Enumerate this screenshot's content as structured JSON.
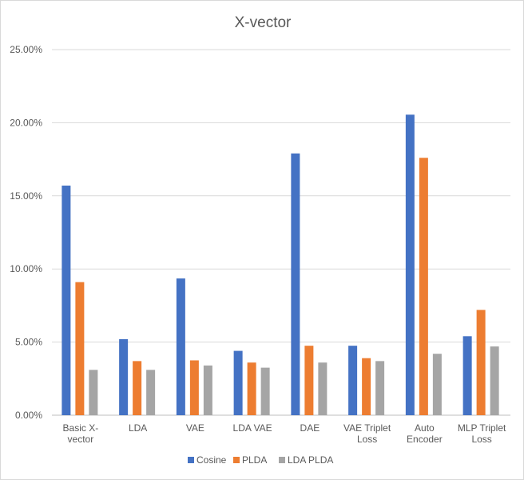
{
  "chart_data": {
    "type": "bar",
    "title": "X-vector",
    "xlabel": "",
    "ylabel": "",
    "ylim": [
      0,
      25
    ],
    "yticks": [
      "0.00%",
      "5.00%",
      "10.00%",
      "15.00%",
      "20.00%",
      "25.00%"
    ],
    "categories": [
      [
        "Basic X-",
        "vector"
      ],
      [
        "LDA"
      ],
      [
        "VAE"
      ],
      [
        "LDA VAE"
      ],
      [
        "DAE"
      ],
      [
        "VAE Triplet",
        "Loss"
      ],
      [
        "Auto",
        "Encoder"
      ],
      [
        "MLP Triplet",
        "Loss"
      ]
    ],
    "series": [
      {
        "name": "Cosine",
        "color": "#4472C4",
        "values": [
          15.7,
          5.2,
          9.35,
          4.4,
          17.9,
          4.75,
          20.55,
          5.4
        ]
      },
      {
        "name": "PLDA",
        "color": "#ED7D31",
        "values": [
          9.1,
          3.7,
          3.75,
          3.6,
          4.75,
          3.9,
          17.6,
          7.2
        ]
      },
      {
        "name": "LDA PLDA",
        "color": "#A5A5A5",
        "values": [
          3.1,
          3.1,
          3.4,
          3.25,
          3.6,
          3.7,
          4.2,
          4.7
        ]
      }
    ],
    "grid": true,
    "legend_position": "bottom"
  }
}
